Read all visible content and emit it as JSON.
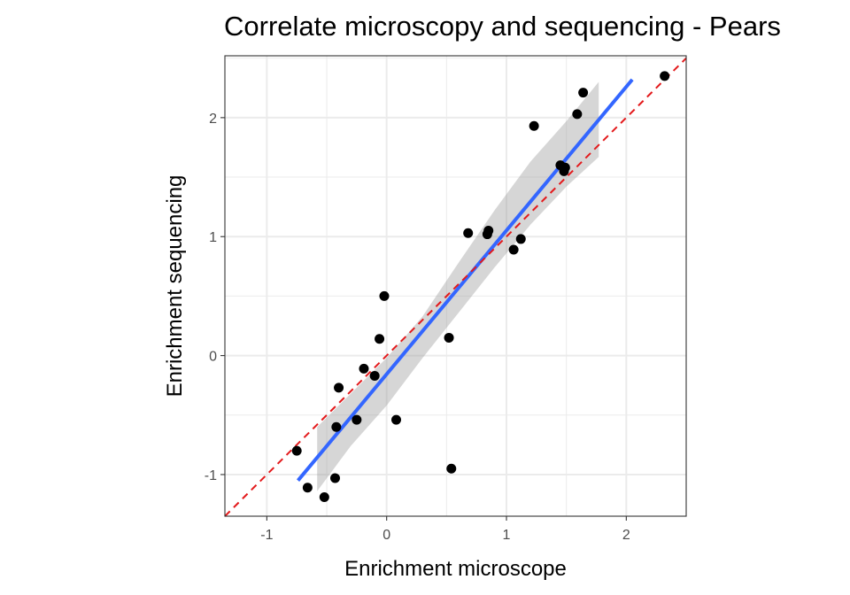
{
  "chart_data": {
    "type": "scatter",
    "title": "Correlate microscopy and sequencing - Pears",
    "xlabel": "Enrichment microscope",
    "ylabel": "Enrichment sequencing",
    "xlim": [
      -1.35,
      2.5
    ],
    "ylim": [
      -1.35,
      2.52
    ],
    "x_ticks": [
      -1,
      0,
      1,
      2
    ],
    "y_ticks": [
      -1,
      0,
      1,
      2
    ],
    "x_tick_labels": [
      "-1",
      "0",
      "1",
      "2"
    ],
    "y_tick_labels": [
      "-1",
      "0",
      "1",
      "2"
    ],
    "grid": true,
    "points": [
      {
        "x": -0.75,
        "y": -0.8
      },
      {
        "x": -0.66,
        "y": -1.11
      },
      {
        "x": -0.52,
        "y": -1.19
      },
      {
        "x": -0.43,
        "y": -1.03
      },
      {
        "x": -0.42,
        "y": -0.6
      },
      {
        "x": -0.4,
        "y": -0.27
      },
      {
        "x": -0.25,
        "y": -0.54
      },
      {
        "x": -0.19,
        "y": -0.11
      },
      {
        "x": -0.1,
        "y": -0.17
      },
      {
        "x": -0.06,
        "y": 0.14
      },
      {
        "x": -0.02,
        "y": 0.5
      },
      {
        "x": 0.08,
        "y": -0.54
      },
      {
        "x": 0.52,
        "y": 0.15
      },
      {
        "x": 0.54,
        "y": -0.95
      },
      {
        "x": 0.68,
        "y": 1.03
      },
      {
        "x": 0.84,
        "y": 1.02
      },
      {
        "x": 0.85,
        "y": 1.05
      },
      {
        "x": 1.06,
        "y": 0.89
      },
      {
        "x": 1.12,
        "y": 0.98
      },
      {
        "x": 1.23,
        "y": 1.93
      },
      {
        "x": 1.45,
        "y": 1.6
      },
      {
        "x": 1.48,
        "y": 1.55
      },
      {
        "x": 1.49,
        "y": 1.58
      },
      {
        "x": 1.59,
        "y": 2.03
      },
      {
        "x": 1.64,
        "y": 2.21
      },
      {
        "x": 2.32,
        "y": 2.35
      }
    ],
    "fit_line": {
      "x": [
        -0.74,
        2.05
      ],
      "y": [
        -1.05,
        2.32
      ],
      "color": "#3366ff"
    },
    "confidence_band": {
      "x": [
        -0.58,
        -0.3,
        0.0,
        0.3,
        0.6,
        0.9,
        1.2,
        1.5,
        1.77
      ],
      "upper": [
        -0.6,
        -0.32,
        -0.02,
        0.33,
        0.78,
        1.22,
        1.63,
        1.97,
        2.3
      ],
      "lower": [
        -1.14,
        -0.76,
        -0.42,
        -0.02,
        0.36,
        0.74,
        1.1,
        1.42,
        1.67
      ],
      "color": "#999999"
    },
    "identity_line": {
      "slope": 1,
      "intercept": 0,
      "color": "#e31a1c"
    },
    "point_color": "#000000",
    "grid_color": "#ebebeb",
    "panel_border_color": "#333333"
  }
}
